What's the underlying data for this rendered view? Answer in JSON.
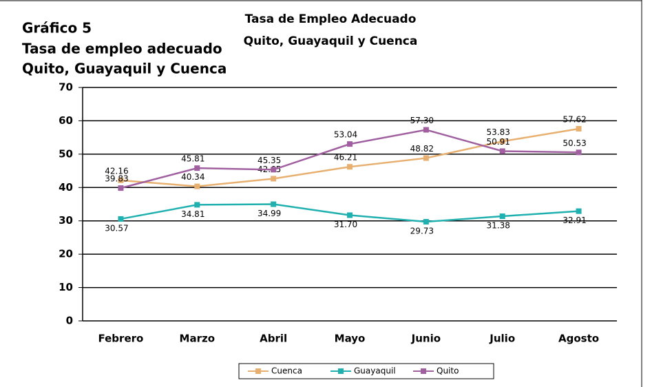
{
  "header": {
    "lines": [
      "Gráfico 5",
      "Tasa de empleo adecuado",
      "Quito, Guayaquil y Cuenca"
    ]
  },
  "chart_data": {
    "type": "line",
    "title": "Tasa de Empleo Adecuado",
    "subtitle": "Quito,  Guayaquil y Cuenca",
    "categories": [
      "Febrero",
      "Marzo",
      "Abril",
      "Mayo",
      "Junio",
      "Julio",
      "Agosto"
    ],
    "series": [
      {
        "name": "Cuenca",
        "color": "#e8b070",
        "values": [
          42.16,
          40.34,
          42.65,
          46.21,
          48.82,
          53.83,
          57.62
        ],
        "value_labels": [
          "42.16",
          "40.34",
          "42.65",
          "46.21",
          "48.82",
          "53.83",
          "57.62"
        ]
      },
      {
        "name": "Guayaquil",
        "color": "#20b0b0",
        "values": [
          30.57,
          34.81,
          34.99,
          31.7,
          29.73,
          31.38,
          32.91
        ],
        "value_labels": [
          "30.57",
          "34.81",
          "34.99",
          "31.70",
          "29.73",
          "31.38",
          "32.91"
        ]
      },
      {
        "name": "Quito",
        "color": "#a060a0",
        "values": [
          39.83,
          45.81,
          45.35,
          53.04,
          57.3,
          50.91,
          50.53
        ],
        "value_labels": [
          "39.83",
          "45.81",
          "45.35",
          "53.04",
          "57.30",
          "50.91",
          "50.53"
        ]
      }
    ],
    "ylim": [
      0,
      70
    ],
    "yticks": [
      0,
      10,
      20,
      30,
      40,
      50,
      60,
      70
    ],
    "grid": true,
    "legend": "bottom"
  }
}
